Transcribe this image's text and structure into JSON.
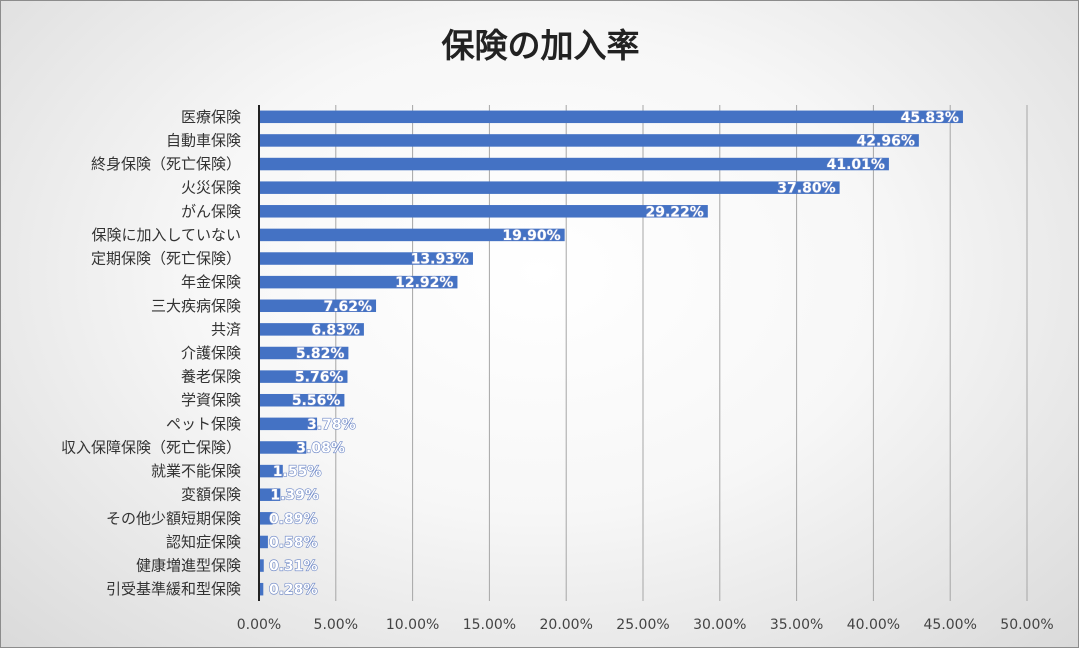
{
  "chart_data": {
    "type": "bar",
    "orientation": "horizontal",
    "title": "保険の加入率",
    "categories": [
      "医療保険",
      "自動車保険",
      "終身保険（死亡保険）",
      "火災保険",
      "がん保険",
      "保険に加入していない",
      "定期保険（死亡保険）",
      "年金保険",
      "三大疾病保険",
      "共済",
      "介護保険",
      "養老保険",
      "学資保険",
      "ペット保険",
      "収入保障保険（死亡保険）",
      "就業不能保険",
      "変額保険",
      "その他少額短期保険",
      "認知症保険",
      "健康増進型保険",
      "引受基準緩和型保険"
    ],
    "values": [
      45.83,
      42.96,
      41.01,
      37.8,
      29.22,
      19.9,
      13.93,
      12.92,
      7.62,
      6.83,
      5.82,
      5.76,
      5.56,
      3.78,
      3.08,
      1.55,
      1.39,
      0.89,
      0.58,
      0.31,
      0.28
    ],
    "data_labels": [
      "45.83%",
      "42.96%",
      "41.01%",
      "37.80%",
      "29.22%",
      "19.90%",
      "13.93%",
      "12.92%",
      "7.62%",
      "6.83%",
      "5.82%",
      "5.76%",
      "5.56%",
      "3.78%",
      "3.08%",
      "1.55%",
      "1.39%",
      "0.89%",
      "0.58%",
      "0.31%",
      "0.28%"
    ],
    "x_ticks": [
      0,
      5,
      10,
      15,
      20,
      25,
      30,
      35,
      40,
      45,
      50
    ],
    "x_tick_labels": [
      "0.00%",
      "5.00%",
      "10.00%",
      "15.00%",
      "20.00%",
      "25.00%",
      "30.00%",
      "35.00%",
      "40.00%",
      "45.00%",
      "50.00%"
    ],
    "xlim": [
      0,
      50
    ],
    "xlabel": "",
    "ylabel": "",
    "grid": "vertical",
    "legend": "none",
    "bar_color": "#4472c4"
  }
}
